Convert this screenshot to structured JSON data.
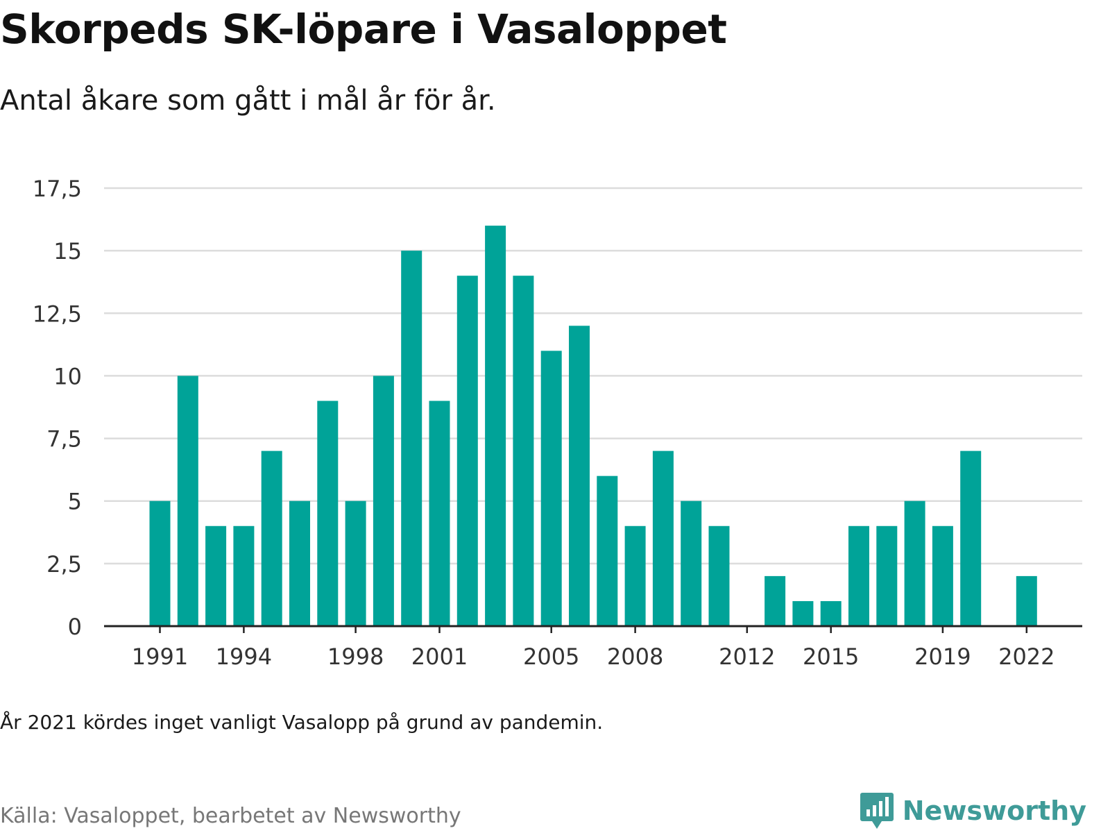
{
  "title": "Skorpeds SK-löpare i Vasaloppet",
  "subtitle": "Antal åkare som gått i mål år för år.",
  "note": "År 2021 kördes inget vanligt Vasalopp på grund av pandemin.",
  "source": "Källa: Vasaloppet, bearbetet av Newsworthy",
  "brand": {
    "name": "Newsworthy",
    "color": "#3f9b98"
  },
  "chart_data": {
    "type": "bar",
    "bar_color": "#00a398",
    "grid": true,
    "ylim": [
      0,
      17.5
    ],
    "yticks": [
      0,
      2.5,
      5,
      7.5,
      10,
      12.5,
      15,
      17.5
    ],
    "ytick_labels": [
      "0",
      "2,5",
      "5",
      "7,5",
      "10",
      "12,5",
      "15",
      "17,5"
    ],
    "xtick_labels": [
      "1991",
      "1994",
      "1998",
      "2001",
      "2005",
      "2008",
      "2012",
      "2015",
      "2019",
      "2022"
    ],
    "x": [
      1991,
      1992,
      1993,
      1994,
      1995,
      1996,
      1997,
      1998,
      1999,
      2000,
      2001,
      2002,
      2003,
      2004,
      2005,
      2006,
      2007,
      2008,
      2009,
      2010,
      2011,
      2012,
      2013,
      2014,
      2015,
      2016,
      2017,
      2018,
      2019,
      2020,
      2021,
      2022
    ],
    "values": [
      5,
      10,
      4,
      4,
      7,
      5,
      9,
      5,
      10,
      15,
      9,
      14,
      16,
      14,
      11,
      12,
      6,
      4,
      7,
      5,
      4,
      0,
      2,
      1,
      1,
      4,
      4,
      5,
      4,
      7,
      0,
      2
    ]
  }
}
